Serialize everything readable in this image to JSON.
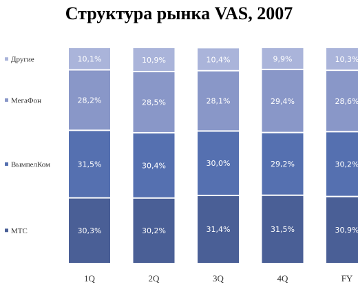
{
  "chart_data": {
    "type": "bar",
    "stacked": true,
    "title": "Структура рынка VAS, 2007",
    "categories": [
      "1Q",
      "2Q",
      "3Q",
      "4Q",
      "FY"
    ],
    "series": [
      {
        "name": "МТС",
        "color": "#4a5f96",
        "values": [
          30.3,
          30.2,
          31.4,
          31.5,
          30.9
        ],
        "labels": [
          "30,3%",
          "30,2%",
          "31,4%",
          "31,5%",
          "30,9%"
        ]
      },
      {
        "name": "ВымпелКом",
        "color": "#5570b0",
        "values": [
          31.5,
          30.4,
          30.0,
          29.2,
          30.2
        ],
        "labels": [
          "31,5%",
          "30,4%",
          "30,0%",
          "29,2%",
          "30,2%"
        ]
      },
      {
        "name": "МегаФон",
        "color": "#8997c8",
        "values": [
          28.2,
          28.5,
          28.1,
          29.4,
          28.6
        ],
        "labels": [
          "28,2%",
          "28,5%",
          "28,1%",
          "29,4%",
          "28,6%"
        ]
      },
      {
        "name": "Другие",
        "color": "#aab4da",
        "values": [
          10.1,
          10.9,
          10.4,
          9.9,
          10.3
        ],
        "labels": [
          "10,1%",
          "10,9%",
          "10,4%",
          "9,9%",
          "10,3%"
        ]
      }
    ],
    "ylim": [
      0,
      100
    ],
    "grid": false,
    "legend_position": "left"
  }
}
